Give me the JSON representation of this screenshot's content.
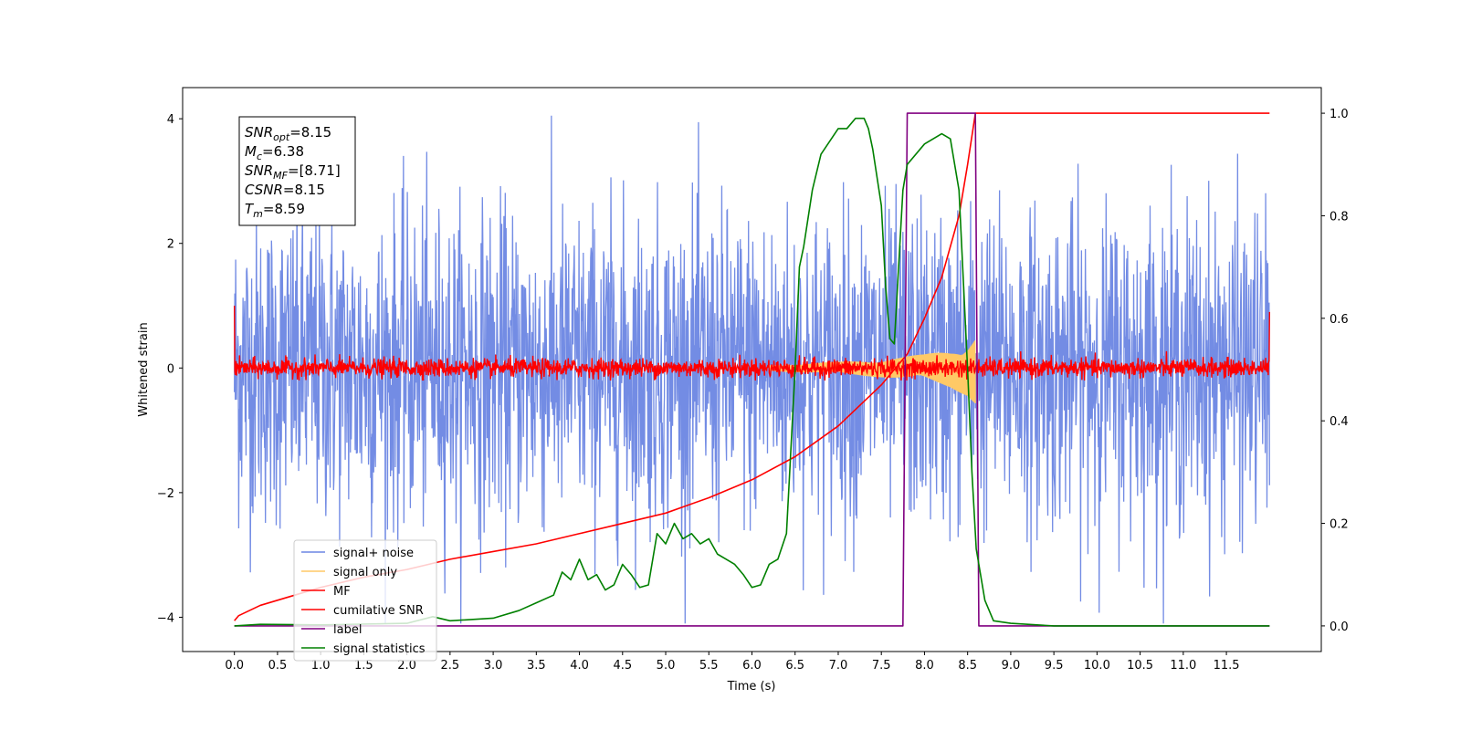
{
  "chart_data": {
    "type": "line",
    "title": "",
    "xlabel": "Time (s)",
    "ylabel": "Whitened strain",
    "y2label": "",
    "xlim": [
      -0.6,
      12.6
    ],
    "ylim": [
      -4.55,
      4.5
    ],
    "y2lim": [
      -0.05,
      1.05
    ],
    "x_ticks": [
      "0.0",
      "0.5",
      "1.0",
      "1.5",
      "2.0",
      "2.5",
      "3.0",
      "3.5",
      "4.0",
      "4.5",
      "5.0",
      "5.5",
      "6.0",
      "6.5",
      "7.0",
      "7.5",
      "8.0",
      "8.5",
      "9.0",
      "9.5",
      "10.0",
      "10.5",
      "11.0",
      "11.5"
    ],
    "y_ticks": [
      "4",
      "2",
      "0",
      "−2",
      "−4"
    ],
    "y2_ticks": [
      "1.0",
      "0.8",
      "0.6",
      "0.4",
      "0.2",
      "0.0"
    ],
    "info_box": [
      {
        "name": "SNR",
        "sub": "opt",
        "value": "=8.15"
      },
      {
        "name": "M",
        "sub": "c",
        "value": "=6.38"
      },
      {
        "name": "SNR",
        "sub": "MF",
        "value": "=[8.71]"
      },
      {
        "name": "CSNR",
        "sub": "",
        "value": "=8.15"
      },
      {
        "name": "T",
        "sub": "m",
        "value": "=8.59"
      }
    ],
    "legend": {
      "placement": "lower-left",
      "entries": [
        {
          "label": "signal+ noise",
          "color": "#6b86e3"
        },
        {
          "label": "signal only",
          "color": "#ffc966"
        },
        {
          "label": "MF",
          "color": "#ff0000"
        },
        {
          "label": "cumilative SNR",
          "color": "#ff0000"
        },
        {
          "label": "label",
          "color": "#800080"
        },
        {
          "label": "signal statistics",
          "color": "#008000"
        }
      ]
    },
    "series": [
      {
        "name": "signal+ noise",
        "axis": "left",
        "color": "#6b86e3",
        "kind": "noise",
        "x_range": [
          0,
          12
        ],
        "typical_range": [
          -2.5,
          2.5
        ],
        "max": 4.05,
        "min": -4.1
      },
      {
        "name": "signal only",
        "axis": "left",
        "color": "#ffc966",
        "kind": "chirp",
        "x_range": [
          6.2,
          8.59
        ],
        "envelope": [
          [
            6.2,
            0.05
          ],
          [
            7.0,
            0.1
          ],
          [
            7.5,
            0.15
          ],
          [
            8.0,
            0.22
          ],
          [
            8.3,
            0.32
          ],
          [
            8.5,
            0.45
          ],
          [
            8.59,
            0.6
          ]
        ]
      },
      {
        "name": "MF",
        "axis": "left",
        "color": "#ff0000",
        "kind": "noise",
        "x_range": [
          0,
          12
        ],
        "typical_range": [
          -0.15,
          0.15
        ],
        "max": 0.35,
        "min": -0.2,
        "edge_values": [
          [
            0.0,
            1.0
          ],
          [
            12.0,
            0.9
          ]
        ]
      },
      {
        "name": "cumilative SNR",
        "axis": "right",
        "color": "#ff0000",
        "x": [
          0.0,
          0.05,
          0.3,
          0.7,
          1.0,
          1.5,
          2.0,
          2.5,
          3.0,
          3.5,
          4.0,
          4.5,
          5.0,
          5.5,
          6.0,
          6.5,
          7.0,
          7.5,
          7.8,
          8.0,
          8.2,
          8.4,
          8.5,
          8.59,
          8.6,
          12.0
        ],
        "y": [
          0.01,
          0.02,
          0.04,
          0.06,
          0.075,
          0.095,
          0.11,
          0.13,
          0.145,
          0.16,
          0.18,
          0.2,
          0.22,
          0.25,
          0.285,
          0.33,
          0.39,
          0.47,
          0.53,
          0.6,
          0.68,
          0.8,
          0.9,
          1.0,
          1.0,
          1.0
        ]
      },
      {
        "name": "label",
        "axis": "right",
        "color": "#800080",
        "x": [
          0.0,
          7.75,
          7.8,
          8.59,
          8.63,
          12.0
        ],
        "y": [
          0.0,
          0.0,
          1.0,
          1.0,
          0.0,
          0.0
        ]
      },
      {
        "name": "signal statistics",
        "axis": "right",
        "color": "#008000",
        "x": [
          0.0,
          0.3,
          1.0,
          2.0,
          2.3,
          2.5,
          3.0,
          3.3,
          3.5,
          3.7,
          3.8,
          3.9,
          4.0,
          4.1,
          4.2,
          4.3,
          4.4,
          4.5,
          4.6,
          4.7,
          4.8,
          4.9,
          5.0,
          5.1,
          5.2,
          5.3,
          5.4,
          5.5,
          5.6,
          5.7,
          5.8,
          5.9,
          6.0,
          6.1,
          6.2,
          6.3,
          6.4,
          6.5,
          6.55,
          6.6,
          6.7,
          6.8,
          7.0,
          7.1,
          7.2,
          7.3,
          7.35,
          7.4,
          7.5,
          7.55,
          7.6,
          7.65,
          7.7,
          7.75,
          7.8,
          8.0,
          8.2,
          8.3,
          8.4,
          8.5,
          8.55,
          8.6,
          8.7,
          8.8,
          9.0,
          9.5,
          12.0
        ],
        "y": [
          0.0,
          0.003,
          0.002,
          0.005,
          0.018,
          0.01,
          0.015,
          0.03,
          0.045,
          0.06,
          0.105,
          0.09,
          0.13,
          0.09,
          0.1,
          0.07,
          0.08,
          0.12,
          0.1,
          0.075,
          0.08,
          0.18,
          0.16,
          0.2,
          0.17,
          0.18,
          0.16,
          0.17,
          0.14,
          0.13,
          0.12,
          0.1,
          0.075,
          0.08,
          0.12,
          0.13,
          0.18,
          0.5,
          0.7,
          0.74,
          0.85,
          0.92,
          0.97,
          0.97,
          0.99,
          0.99,
          0.97,
          0.93,
          0.82,
          0.66,
          0.56,
          0.55,
          0.7,
          0.85,
          0.9,
          0.94,
          0.96,
          0.95,
          0.85,
          0.5,
          0.3,
          0.15,
          0.05,
          0.01,
          0.005,
          0.0,
          0.0
        ]
      }
    ]
  }
}
